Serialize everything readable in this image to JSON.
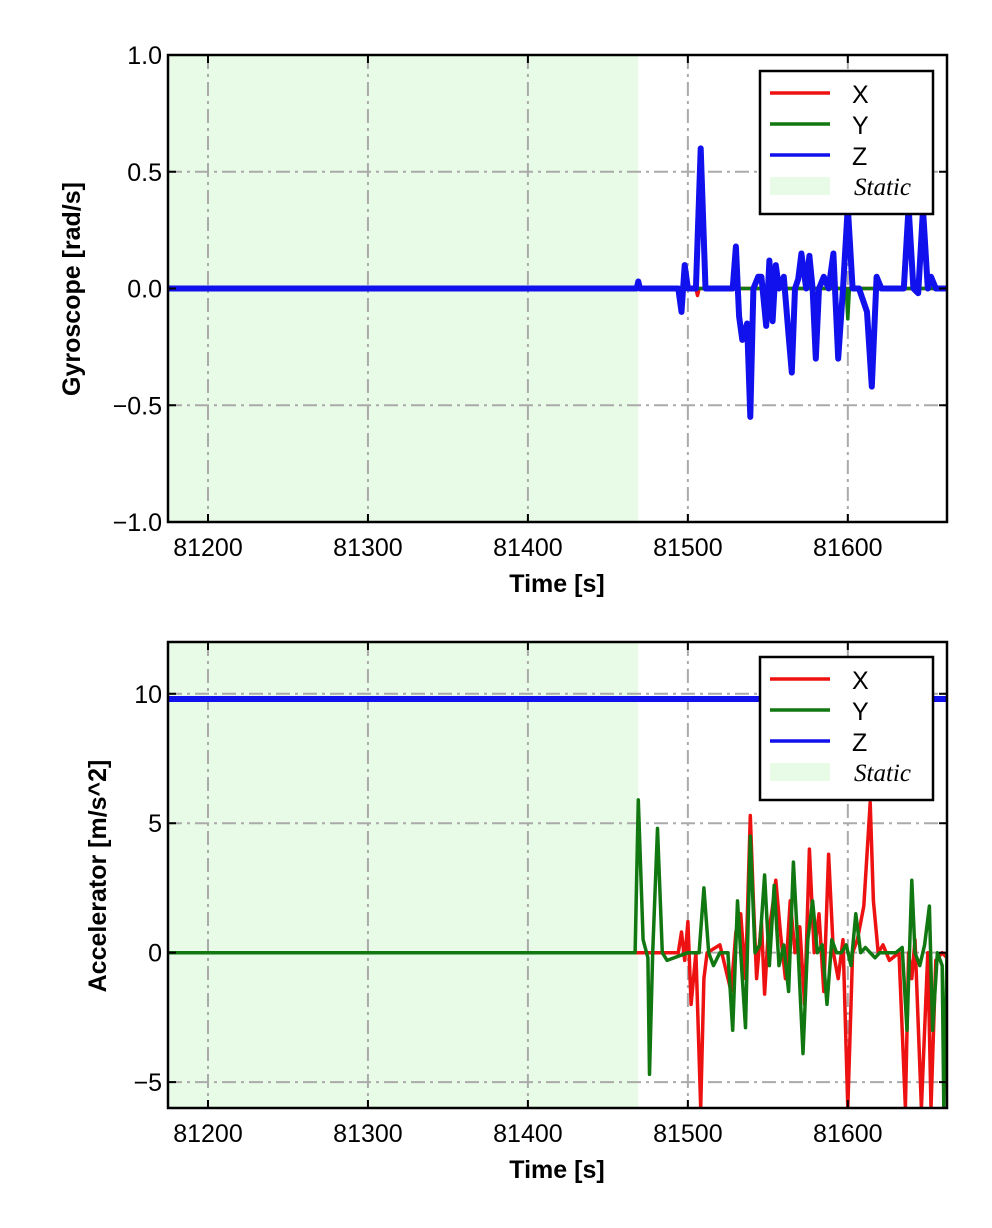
{
  "colors": {
    "X": "#ee1111",
    "Y": "#117711",
    "Z": "#1111ee",
    "static_fill": "#e8fbe6",
    "grid": "#aaaaaa"
  },
  "chart_data": [
    {
      "type": "line",
      "xlabel": "Time [s]",
      "ylabel": "Gyroscope [rad/s]",
      "xlim": [
        81175,
        81662
      ],
      "ylim": [
        -1.0,
        1.0
      ],
      "xticks": [
        81200,
        81300,
        81400,
        81500,
        81600
      ],
      "xtick_labels": [
        "81200",
        "81300",
        "81400",
        "81500",
        "81600"
      ],
      "yticks": [
        1.0,
        0.5,
        0.0,
        -0.5,
        -1.0
      ],
      "ytick_labels": [
        "1.0",
        "0.5",
        "0.0",
        "−0.5",
        "−1.0"
      ],
      "grid": true,
      "legend_position": "top-right",
      "static_region": {
        "label": "Static",
        "x_start": 81175,
        "x_end": 81469
      },
      "series": [
        {
          "name": "X",
          "color": "#ee1111",
          "x": [
            81175,
            81500,
            81505,
            81506,
            81507,
            81662
          ],
          "y": [
            0.0,
            0.0,
            0.0,
            -0.03,
            0.0,
            0.0
          ]
        },
        {
          "name": "Y",
          "color": "#117711",
          "x": [
            81175,
            81554,
            81555,
            81556,
            81599,
            81600,
            81601,
            81662
          ],
          "y": [
            0.0,
            0.0,
            0.05,
            0.0,
            0.0,
            -0.13,
            0.0,
            0.0
          ]
        },
        {
          "name": "Z",
          "color": "#1111ee",
          "x": [
            81175,
            81468,
            81469,
            81470,
            81494,
            81496,
            81498,
            81500,
            81505,
            81508,
            81511,
            81528,
            81530,
            81532,
            81534,
            81537,
            81539,
            81541,
            81544,
            81546,
            81549,
            81551,
            81553,
            81555,
            81557,
            81560,
            81563,
            81565,
            81567,
            81569,
            81571,
            81574,
            81576,
            81578,
            81580,
            81582,
            81585,
            81588,
            81591,
            81594,
            81597,
            81600,
            81603,
            81607,
            81612,
            81615,
            81618,
            81621,
            81625,
            81635,
            81638,
            81641,
            81644,
            81647,
            81650,
            81652,
            81655,
            81662
          ],
          "y": [
            0.0,
            0.0,
            0.03,
            0.0,
            0.0,
            -0.1,
            0.1,
            0.0,
            0.0,
            0.6,
            0.0,
            0.0,
            0.18,
            -0.12,
            -0.22,
            -0.15,
            -0.55,
            0.0,
            0.05,
            0.05,
            -0.16,
            0.12,
            -0.14,
            0.1,
            0.0,
            0.05,
            -0.2,
            -0.36,
            0.0,
            0.04,
            0.15,
            0.0,
            0.14,
            0.0,
            -0.3,
            0.0,
            0.05,
            0.0,
            0.15,
            -0.3,
            0.0,
            0.35,
            0.0,
            0.0,
            -0.1,
            -0.42,
            0.05,
            0.0,
            0.0,
            0.0,
            0.35,
            0.0,
            -0.02,
            0.34,
            0.0,
            0.05,
            0.0,
            0.0
          ]
        }
      ]
    },
    {
      "type": "line",
      "xlabel": "Time [s]",
      "ylabel": "Accelerator [m/s^2]",
      "xlim": [
        81175,
        81662
      ],
      "ylim": [
        -6.0,
        12.0
      ],
      "xticks": [
        81200,
        81300,
        81400,
        81500,
        81600
      ],
      "xtick_labels": [
        "81200",
        "81300",
        "81400",
        "81500",
        "81600"
      ],
      "yticks": [
        10,
        5,
        0,
        -5
      ],
      "ytick_labels": [
        "10",
        "5",
        "0",
        "−5"
      ],
      "grid": true,
      "legend_position": "top-right",
      "static_region": {
        "label": "Static",
        "x_start": 81175,
        "x_end": 81469
      },
      "series": [
        {
          "name": "X",
          "color": "#ee1111",
          "x": [
            81175,
            81494,
            81496,
            81498,
            81500,
            81502,
            81505,
            81508,
            81510,
            81512,
            81520,
            81527,
            81530,
            81533,
            81536,
            81539,
            81541,
            81543,
            81546,
            81548,
            81550,
            81553,
            81555,
            81558,
            81561,
            81564,
            81567,
            81570,
            81573,
            81576,
            81579,
            81582,
            81585,
            81588,
            81591,
            81594,
            81597,
            81600,
            81603,
            81606,
            81610,
            81614,
            81616,
            81619,
            81622,
            81626,
            81632,
            81636,
            81638,
            81640,
            81642,
            81646,
            81650,
            81652,
            81655,
            81659,
            81662
          ],
          "y": [
            0.0,
            0.0,
            0.8,
            -0.3,
            1.2,
            -2.0,
            0.0,
            -6.0,
            -1.0,
            0.0,
            0.3,
            -1.5,
            0.8,
            1.5,
            -1.0,
            5.3,
            2.0,
            -1.0,
            1.2,
            -1.6,
            0.5,
            1.8,
            2.8,
            0.7,
            -1.0,
            2.0,
            0.0,
            1.0,
            -2.0,
            4.0,
            0.0,
            1.5,
            -1.5,
            3.8,
            0.0,
            -1.0,
            0.5,
            -6.0,
            0.0,
            0.5,
            1.8,
            5.8,
            2.0,
            0.0,
            0.3,
            -0.3,
            0.0,
            -6.0,
            0.0,
            -1.0,
            0.5,
            -6.0,
            0.0,
            -6.0,
            -0.3,
            0.0,
            -0.2
          ]
        },
        {
          "name": "Y",
          "color": "#117711",
          "x": [
            81175,
            81467,
            81469,
            81472,
            81475,
            81476,
            81478,
            81481,
            81484,
            81487,
            81500,
            81503,
            81507,
            81510,
            81513,
            81516,
            81520,
            81525,
            81528,
            81531,
            81533,
            81536,
            81539,
            81542,
            81545,
            81548,
            81551,
            81554,
            81557,
            81560,
            81563,
            81566,
            81569,
            81572,
            81575,
            81578,
            81581,
            81584,
            81587,
            81590,
            81593,
            81596,
            81599,
            81602,
            81605,
            81608,
            81611,
            81614,
            81617,
            81620,
            81630,
            81634,
            81637,
            81640,
            81642,
            81645,
            81648,
            81651,
            81653,
            81656,
            81659,
            81660,
            81662
          ],
          "y": [
            0.0,
            0.0,
            5.9,
            0.5,
            -0.2,
            -4.7,
            0.0,
            4.8,
            0.0,
            -0.3,
            0.0,
            0.0,
            0.0,
            2.5,
            0.0,
            -0.5,
            0.0,
            0.0,
            -3.0,
            2.0,
            0.0,
            -2.9,
            4.5,
            0.0,
            0.3,
            3.0,
            -0.5,
            2.6,
            -0.5,
            0.3,
            -1.5,
            3.5,
            0.0,
            -3.9,
            0.5,
            2.0,
            0.0,
            0.3,
            -2.0,
            0.5,
            0.0,
            0.0,
            0.3,
            -0.5,
            1.5,
            0.0,
            0.2,
            0.0,
            -0.2,
            0.0,
            0.0,
            0.2,
            -3.0,
            2.8,
            0.0,
            -0.5,
            0.3,
            1.8,
            -3.0,
            0.0,
            -0.5,
            -6.0,
            0.0
          ]
        },
        {
          "name": "Z",
          "color": "#1111ee",
          "x": [
            81175,
            81662
          ],
          "y": [
            9.8,
            9.8
          ]
        }
      ]
    }
  ]
}
